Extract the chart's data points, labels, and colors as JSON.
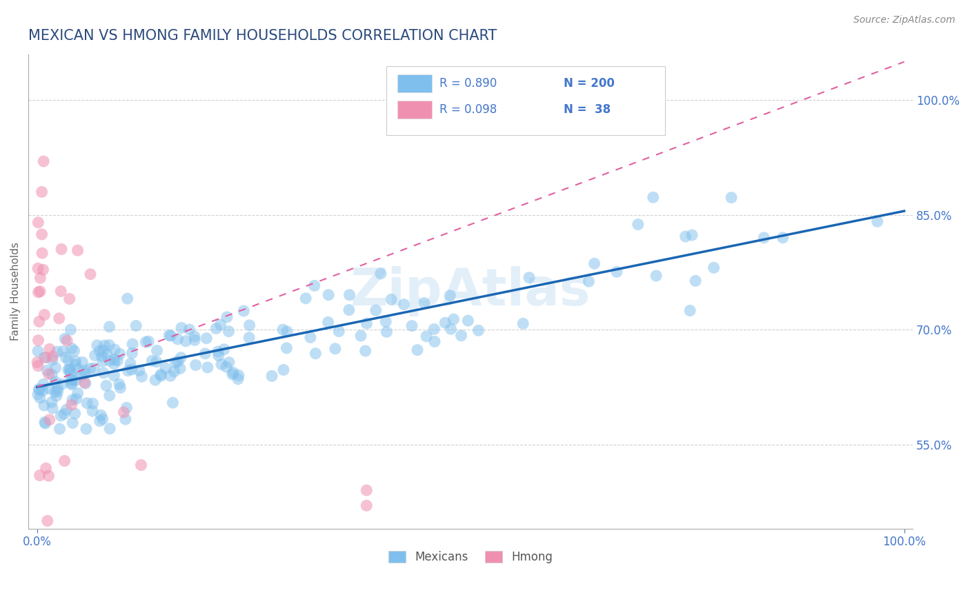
{
  "title": "MEXICAN VS HMONG FAMILY HOUSEHOLDS CORRELATION CHART",
  "source": "Source: ZipAtlas.com",
  "ylabel": "Family Households",
  "legend_entries": [
    {
      "label": "Mexicans",
      "color": "#a8c8f0",
      "R": "0.890",
      "N": "200"
    },
    {
      "label": "Hmong",
      "color": "#f4b8cc",
      "R": "0.098",
      "N": "38"
    }
  ],
  "right_ytick_labels": [
    "55.0%",
    "70.0%",
    "85.0%",
    "100.0%"
  ],
  "right_ytick_values": [
    0.55,
    0.7,
    0.85,
    1.0
  ],
  "ymin": 0.44,
  "ymax": 1.06,
  "xmin": -0.01,
  "xmax": 1.01,
  "blue_scatter_color": "#7fbfed",
  "pink_scatter_color": "#f090b0",
  "blue_line_color": "#1a66b3",
  "pink_line_color": "#e060a0",
  "watermark": "ZipAtlas",
  "title_color": "#2c4a7c",
  "title_fontsize": 15,
  "axis_label_color": "#666666",
  "tick_color": "#4477cc",
  "grid_color": "#cccccc",
  "background_color": "#ffffff",
  "blue_line_x0": 0.0,
  "blue_line_y0": 0.625,
  "blue_line_x1": 1.0,
  "blue_line_y1": 0.855,
  "pink_line_x0": 0.0,
  "pink_line_y0": 0.625,
  "pink_line_x1": 1.0,
  "pink_line_y1": 1.05
}
